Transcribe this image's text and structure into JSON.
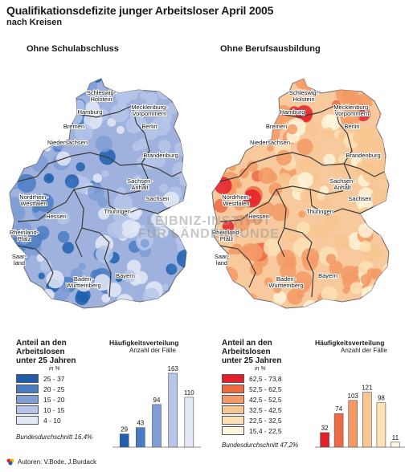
{
  "title": "Qualifikationsdefizite junger Arbeitsloser April 2005",
  "subtitle": "nach Kreisen",
  "watermark": [
    "LEIBNIZ-INSTITUT",
    "FÜR LÄNDERKUNDE"
  ],
  "footer": {
    "authors": "Autoren: V.Bode, J.Burdack"
  },
  "maps": [
    {
      "title": "Ohne Schulabschluss",
      "fill": "#9fb2de",
      "light": "#cfd9f0",
      "dark": "#3d6bbf",
      "states": [
        "Schleswig-\nHolstein",
        "Mecklenburg-\nVorpommern",
        "Hamburg",
        "Bremen",
        "Niedersachsen",
        "Berlin",
        "Brandenburg",
        "Sachsen-\nAnhalt",
        "Nordrhein-\nWestfalen",
        "Sachsen",
        "Hessen",
        "Thüringen",
        "Rheinland-\nPfalz",
        "Saar-\nland",
        "Baden-\nWürttemberg",
        "Bayern"
      ]
    },
    {
      "title": "Ohne Berufsausbildung",
      "fill": "#f7c99c",
      "light": "#fde8cf",
      "dark": "#e8553a",
      "states": [
        "Schleswig-\nHolstein",
        "Mecklenburg-\nVorpommern",
        "Hamburg",
        "Bremen",
        "Niedersachsen",
        "Berlin",
        "Brandenburg",
        "Sachsen-\nAnhalt",
        "Nordrhein-\nWestfalen",
        "Sachsen",
        "Hessen",
        "Thüringen",
        "Rheinland-\nPfalz",
        "Saar-\nland",
        "Baden-\nWürttemberg",
        "Bayern"
      ]
    }
  ],
  "legends": [
    {
      "heading": [
        "Anteil an den",
        "Arbeitslosen",
        "unter 25 Jahren"
      ],
      "unit": "in %",
      "classes": [
        {
          "label": "25 - 37",
          "color": "#1f5fae"
        },
        {
          "label": "20 - 25",
          "color": "#4a7cc4"
        },
        {
          "label": "15 - 20",
          "color": "#7f9ed6"
        },
        {
          "label": "10 - 15",
          "color": "#b6c6ea"
        },
        {
          "label": "4 - 10",
          "color": "#e3e9f7"
        }
      ],
      "average": "Bundesdurchschnitt 16,4%"
    },
    {
      "heading": [
        "Anteil an den",
        "Arbeitslosen",
        "unter 25 Jahren"
      ],
      "unit": "in %",
      "classes": [
        {
          "label": "62,5 - 73,8",
          "color": "#e3202a"
        },
        {
          "label": "52,5 - 62,5",
          "color": "#ee6a43"
        },
        {
          "label": "42,5 - 52,5",
          "color": "#f39a66"
        },
        {
          "label": "32,5 - 42,5",
          "color": "#f8c690"
        },
        {
          "label": "22,5 - 32,5",
          "color": "#fce2b5"
        },
        {
          "label": "15,4 - 22,5",
          "color": "#fef5dc"
        }
      ],
      "average": "Bundesdurchschnitt 47,2%"
    }
  ],
  "chart_data": [
    {
      "type": "bar",
      "title": "Häufigkeitsverteilung",
      "ylabel": "Anzahl der Fälle",
      "categories": [
        "25 - 37",
        "20 - 25",
        "15 - 20",
        "10 - 15",
        "4 - 10"
      ],
      "values": [
        29,
        43,
        94,
        163,
        110
      ],
      "colors": [
        "#1f5fae",
        "#4a7cc4",
        "#7f9ed6",
        "#b6c6ea",
        "#e3e9f7"
      ]
    },
    {
      "type": "bar",
      "title": "Häufigkeitsverteilung",
      "ylabel": "Anzahl der Fälle",
      "categories": [
        "62,5 - 73,8",
        "52,5 - 62,5",
        "42,5 - 52,5",
        "32,5 - 42,5",
        "22,5 - 32,5",
        "15,4 - 22,5"
      ],
      "values": [
        32,
        74,
        103,
        121,
        98,
        11
      ],
      "colors": [
        "#e3202a",
        "#ee6a43",
        "#f39a66",
        "#f8c690",
        "#fce2b5",
        "#fef5dc"
      ]
    }
  ]
}
